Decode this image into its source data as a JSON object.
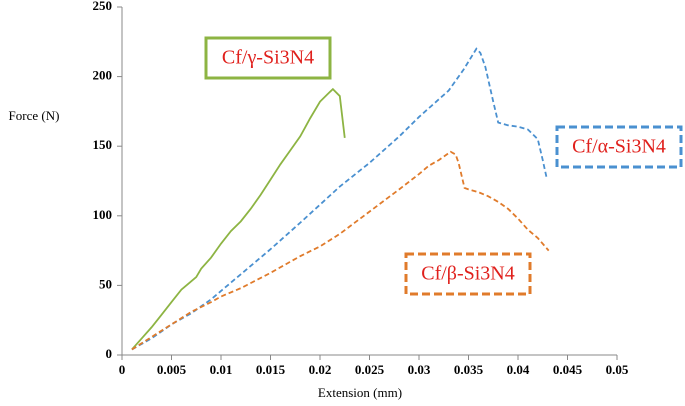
{
  "chart_data": {
    "type": "line",
    "x_label": "Extension (mm)",
    "y_label": "Force (N)",
    "xlim": [
      0,
      0.05
    ],
    "ylim": [
      0,
      250
    ],
    "xticks": [
      0,
      0.005,
      0.01,
      0.015,
      0.02,
      0.025,
      0.03,
      0.035,
      0.04,
      0.045,
      0.05
    ],
    "yticks": [
      0,
      50,
      100,
      150,
      200,
      250
    ],
    "grid": false,
    "series": [
      {
        "name": "Cf/γ-Si3N4",
        "color": "#8db443",
        "dashed": false,
        "x": [
          0.001,
          0.002,
          0.003,
          0.004,
          0.005,
          0.006,
          0.0065,
          0.0075,
          0.008,
          0.009,
          0.01,
          0.011,
          0.012,
          0.013,
          0.014,
          0.015,
          0.016,
          0.017,
          0.018,
          0.019,
          0.02,
          0.021,
          0.0213,
          0.022,
          0.0225
        ],
        "values": [
          4,
          12,
          20,
          29,
          38,
          47,
          50,
          56,
          62,
          70,
          80,
          89,
          96,
          105,
          115,
          126,
          137,
          147,
          157,
          170,
          182,
          189,
          191,
          186,
          156
        ]
      },
      {
        "name": "Cf/α-Si3N4",
        "color": "#4a90d0",
        "dashed": true,
        "x": [
          0.001,
          0.003,
          0.005,
          0.007,
          0.009,
          0.01,
          0.012,
          0.015,
          0.018,
          0.02,
          0.022,
          0.025,
          0.028,
          0.03,
          0.033,
          0.0345,
          0.0358,
          0.0362,
          0.0367,
          0.0375,
          0.038,
          0.039,
          0.04,
          0.041,
          0.042,
          0.0425,
          0.0429
        ],
        "values": [
          4,
          12,
          22,
          30,
          40,
          46,
          58,
          76,
          95,
          108,
          121,
          138,
          157,
          171,
          190,
          205,
          220,
          217,
          207,
          182,
          167,
          165,
          164,
          162,
          155,
          140,
          127
        ]
      },
      {
        "name": "Cf/β-Si3N4",
        "color": "#e07b2b",
        "dashed": true,
        "x": [
          0.001,
          0.003,
          0.005,
          0.007,
          0.009,
          0.01,
          0.012,
          0.015,
          0.018,
          0.02,
          0.022,
          0.025,
          0.028,
          0.03,
          0.031,
          0.032,
          0.0332,
          0.0337,
          0.034,
          0.0346,
          0.035,
          0.036,
          0.037,
          0.038,
          0.039,
          0.04,
          0.041,
          0.042,
          0.0431
        ],
        "values": [
          4,
          13,
          22,
          31,
          38,
          42,
          48,
          59,
          71,
          78,
          87,
          103,
          119,
          130,
          136,
          140,
          146,
          144,
          138,
          120,
          119,
          117,
          114,
          110,
          105,
          98,
          90,
          84,
          75
        ]
      }
    ]
  }
}
